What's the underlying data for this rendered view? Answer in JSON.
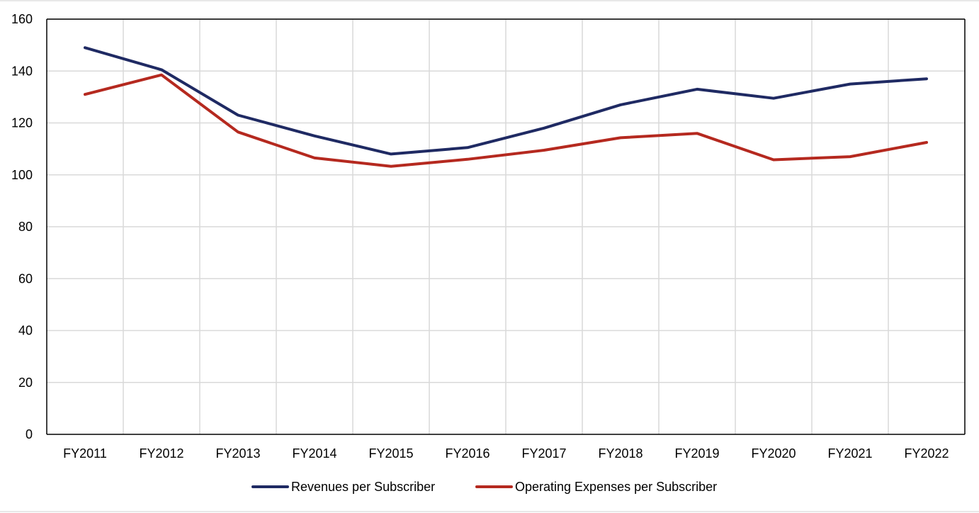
{
  "chart_data": {
    "type": "line",
    "title": "",
    "xlabel": "",
    "ylabel": "",
    "categories": [
      "FY2011",
      "FY2012",
      "FY2013",
      "FY2014",
      "FY2015",
      "FY2016",
      "FY2017",
      "FY2018",
      "FY2019",
      "FY2020",
      "FY2021",
      "FY2022"
    ],
    "ylim": [
      0,
      160
    ],
    "yticks": [
      0,
      20,
      40,
      60,
      80,
      100,
      120,
      140,
      160
    ],
    "grid": true,
    "legend_position": "bottom",
    "series": [
      {
        "name": "Revenues per Subscriber",
        "color": "#1f2a63",
        "values": [
          149,
          140.5,
          123,
          115,
          108,
          110.5,
          118,
          127,
          133,
          129.5,
          135,
          137
        ]
      },
      {
        "name": "Operating Expenses per Subscriber",
        "color": "#b5291f",
        "values": [
          131,
          138.5,
          116.5,
          106.5,
          103.3,
          106,
          109.5,
          114.3,
          116,
          105.8,
          107,
          112.5
        ]
      }
    ]
  }
}
